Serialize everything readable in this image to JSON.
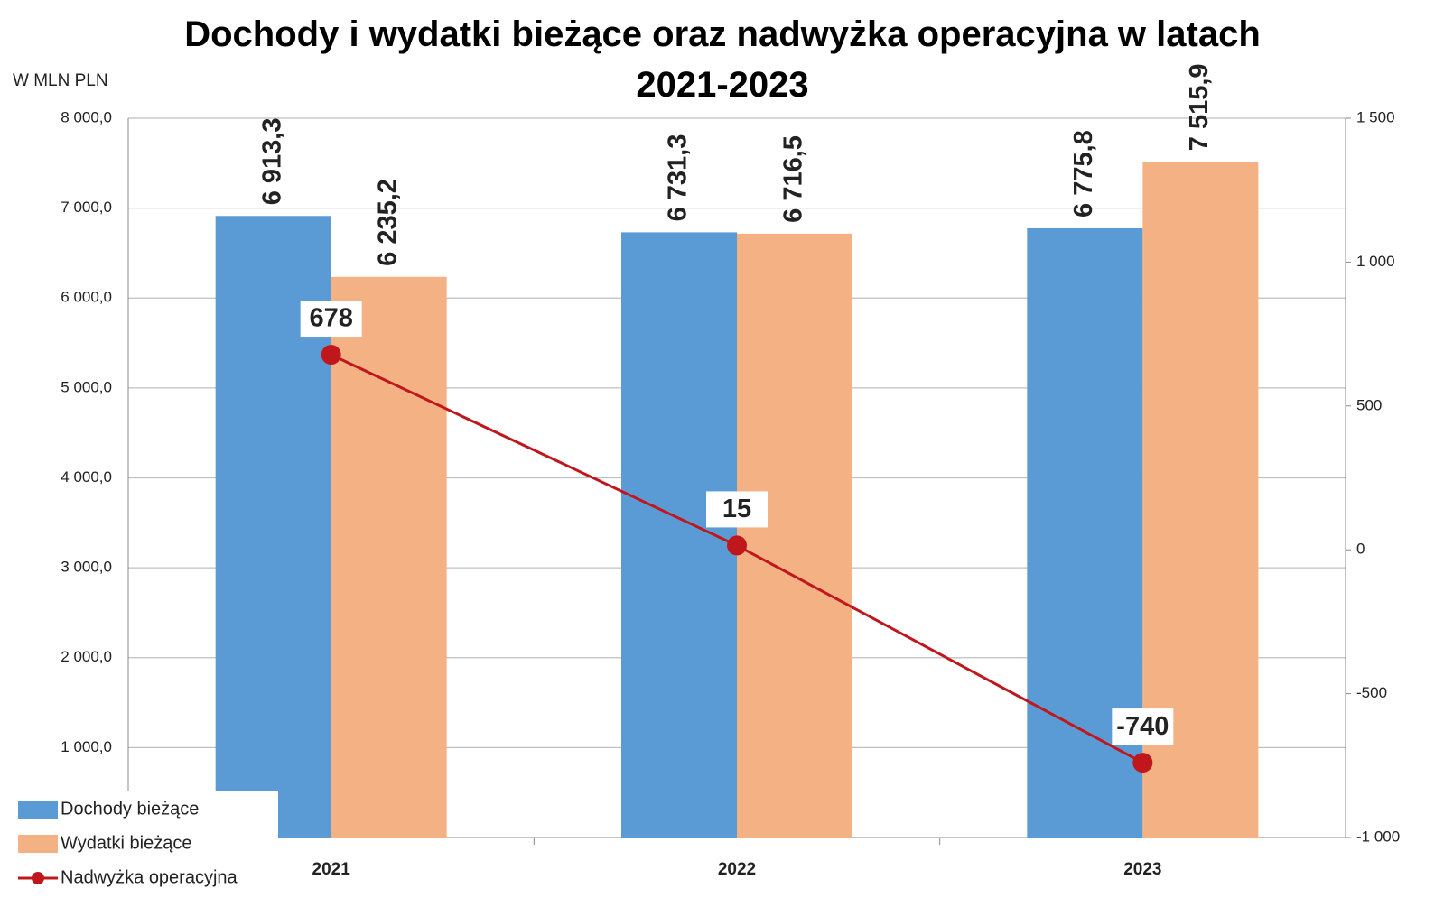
{
  "chart_data": {
    "type": "bar",
    "title": "Dochody i wydatki bieżące oraz nadwyżka operacyjna w latach 2021-2023",
    "y_label": "W MLN PLN",
    "categories": [
      "2021",
      "2022",
      "2023"
    ],
    "series": [
      {
        "name": "Dochody bieżące",
        "type": "bar",
        "color": "#5b9bd5",
        "values": [
          6913.3,
          6731.3,
          6775.8
        ],
        "value_labels": [
          "6 913,3",
          "6 731,3",
          "6 775,8"
        ]
      },
      {
        "name": "Wydatki bieżące",
        "type": "bar",
        "color": "#f4b183",
        "values": [
          6235.2,
          6716.5,
          7515.9
        ],
        "value_labels": [
          "6 235,2",
          "6 716,5",
          "7 515,9"
        ]
      },
      {
        "name": "Nadwyżka operacyjna",
        "type": "line",
        "axis": "y2",
        "color": "#c0171d",
        "values": [
          678,
          15,
          -740
        ]
      }
    ],
    "ylim": [
      0,
      8000
    ],
    "yticks": [
      {
        "value": 1000,
        "label": "1 000,0"
      },
      {
        "value": 2000,
        "label": "2 000,0"
      },
      {
        "value": 3000,
        "label": "3 000,0"
      },
      {
        "value": 4000,
        "label": "4 000,0"
      },
      {
        "value": 5000,
        "label": "5 000,0"
      },
      {
        "value": 6000,
        "label": "6 000,0"
      },
      {
        "value": 7000,
        "label": "7 000,0"
      },
      {
        "value": 8000,
        "label": "8 000,0"
      }
    ],
    "y2lim": [
      -1000,
      1500
    ],
    "y2ticks": [
      {
        "value": -1000,
        "label": "-1 000"
      },
      -500,
      0,
      500,
      {
        "value": 1000,
        "label": "1 000"
      },
      {
        "value": 1500,
        "label": "1 500"
      }
    ],
    "grid": true,
    "legend": "lower left"
  }
}
